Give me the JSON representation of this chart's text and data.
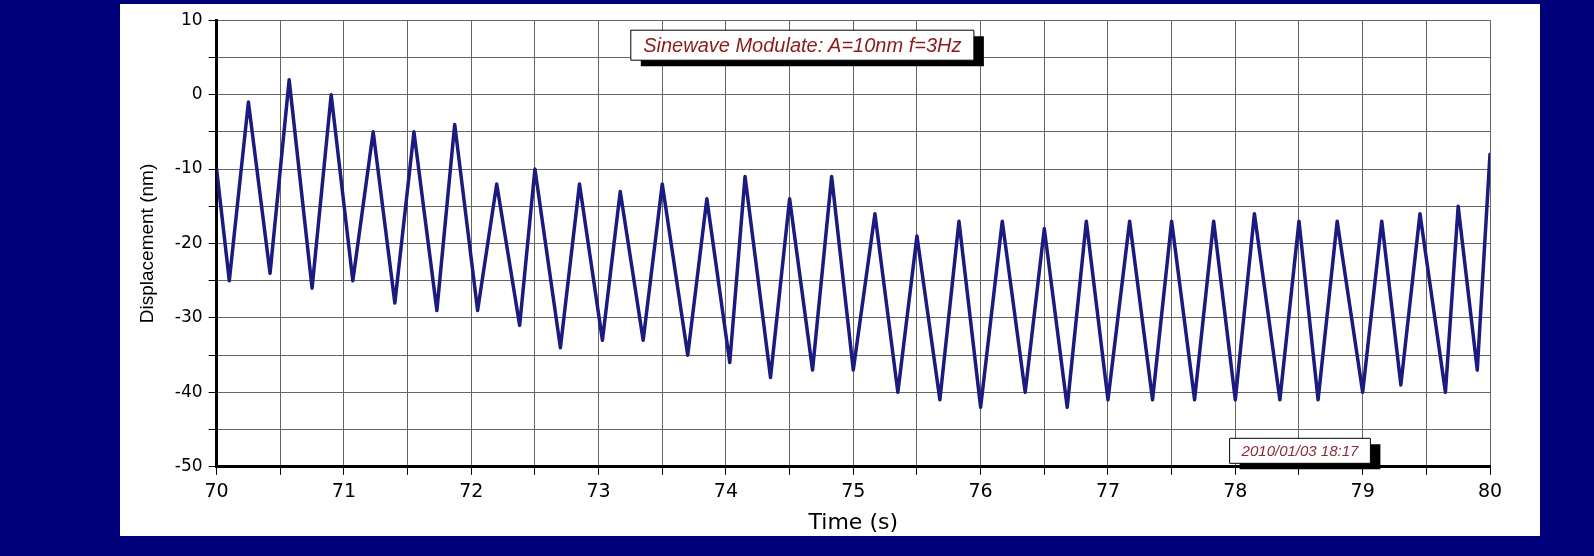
{
  "chart_data": {
    "type": "line",
    "title": "Sinewave Modulate: A=10nm f=3Hz",
    "xlabel": "Time (s)",
    "ylabel": "Displacement (nm)",
    "annotations": [
      "2010/01/03 18:17"
    ],
    "x": [
      70,
      70.1,
      70.25,
      70.42,
      70.57,
      70.75,
      70.9,
      71.07,
      71.23,
      71.4,
      71.55,
      71.73,
      71.87,
      72.05,
      72.2,
      72.38,
      72.5,
      72.7,
      72.85,
      73.03,
      73.17,
      73.35,
      73.5,
      73.7,
      73.85,
      74.03,
      74.15,
      74.35,
      74.5,
      74.68,
      74.83,
      75,
      75.17,
      75.35,
      75.5,
      75.68,
      75.83,
      76,
      76.17,
      76.35,
      76.5,
      76.68,
      76.83,
      77,
      77.17,
      77.35,
      77.5,
      77.68,
      77.83,
      78,
      78.15,
      78.35,
      78.5,
      78.65,
      78.8,
      79,
      79.15,
      79.3,
      79.45,
      79.65,
      79.75,
      79.9,
      80
    ],
    "series": [
      {
        "color": "#1a1a80",
        "values": [
          -10,
          -25,
          -1,
          -24,
          2,
          -26,
          0,
          -25,
          -5,
          -28,
          -5,
          -29,
          -4,
          -29,
          -12,
          -31,
          -10,
          -34,
          -12,
          -33,
          -13,
          -33,
          -12,
          -35,
          -14,
          -36,
          -11,
          -38,
          -14,
          -37,
          -11,
          -37,
          -16,
          -40,
          -19,
          -41,
          -17,
          -42,
          -17,
          -40,
          -18,
          -42,
          -17,
          -41,
          -17,
          -41,
          -17,
          -41,
          -17,
          -41,
          -16,
          -41,
          -17,
          -41,
          -17,
          -40,
          -17,
          -39,
          -16,
          -40,
          -15,
          -37,
          -8
        ]
      }
    ],
    "xlim": [
      70,
      80
    ],
    "xticks": [
      70,
      {
        "value": 70.5,
        "label": null
      },
      71,
      {
        "value": 71.5,
        "label": null
      },
      72,
      {
        "value": 72.5,
        "label": null
      },
      73,
      {
        "value": 73.5,
        "label": null
      },
      74,
      {
        "value": 74.5,
        "label": null
      },
      75,
      {
        "value": 75.5,
        "label": null
      },
      76,
      {
        "value": 76.5,
        "label": null
      },
      77,
      {
        "value": 77.5,
        "label": null
      },
      78,
      {
        "value": 78.5,
        "label": null
      },
      79,
      {
        "value": 79.5,
        "label": null
      },
      80
    ],
    "ylim": [
      -50,
      10
    ],
    "yticks": [
      -50,
      {
        "value": -45,
        "label": null
      },
      -40,
      {
        "value": -35,
        "label": null
      },
      -30,
      {
        "value": -25,
        "label": null
      },
      -20,
      {
        "value": -15,
        "label": null
      },
      -10,
      {
        "value": -5,
        "label": null
      },
      0,
      {
        "value": 5,
        "label": null
      },
      10
    ],
    "grid": true,
    "legend": false,
    "marker": "none",
    "line_style": "solid"
  }
}
